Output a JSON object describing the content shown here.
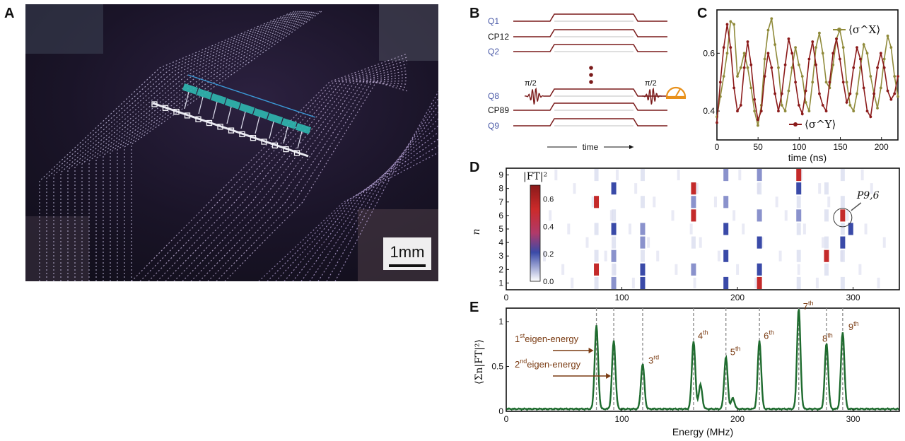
{
  "panels": {
    "a": "A",
    "b": "B",
    "c": "C",
    "d": "D",
    "e": "E"
  },
  "photo": {
    "scale_label": "1mm"
  },
  "pulse": {
    "rows": [
      "Q1",
      "CP12",
      "Q2",
      "Q8",
      "CP89",
      "Q9"
    ],
    "pi_left": "π/2",
    "pi_right": "π/2",
    "time_label": "time"
  },
  "colors": {
    "olive": "#8f8a3a",
    "maroon": "#8b1a1a",
    "green": "#1e6b2e",
    "brown": "#7a3b12",
    "blue": "#4a5aa8"
  },
  "chart_data": [
    {
      "type": "line",
      "xlabel": "time (ns)",
      "xlim": [
        0,
        220
      ],
      "ylim": [
        0.3,
        0.75
      ],
      "xticks": [
        0,
        50,
        100,
        150,
        200
      ],
      "yticks": [
        0.4,
        0.6
      ],
      "series": [
        {
          "name": "⟨σ^X⟩",
          "values": [
            0.38,
            0.45,
            0.52,
            0.6,
            0.71,
            0.7,
            0.52,
            0.55,
            0.6,
            0.55,
            0.48,
            0.4,
            0.35,
            0.42,
            0.58,
            0.68,
            0.72,
            0.63,
            0.55,
            0.42,
            0.4,
            0.47,
            0.55,
            0.62,
            0.56,
            0.52,
            0.43,
            0.4,
            0.5,
            0.62,
            0.67,
            0.6,
            0.5,
            0.48,
            0.56,
            0.65,
            0.68,
            0.62,
            0.5,
            0.42,
            0.4,
            0.46,
            0.55,
            0.63,
            0.6,
            0.52,
            0.46,
            0.41,
            0.48,
            0.58,
            0.66,
            0.62,
            0.52,
            0.45
          ]
        },
        {
          "name": "⟨σ^Y⟩",
          "values": [
            0.36,
            0.5,
            0.62,
            0.7,
            0.62,
            0.48,
            0.4,
            0.42,
            0.55,
            0.64,
            0.56,
            0.44,
            0.37,
            0.4,
            0.52,
            0.6,
            0.55,
            0.46,
            0.4,
            0.46,
            0.56,
            0.65,
            0.6,
            0.5,
            0.42,
            0.39,
            0.47,
            0.58,
            0.64,
            0.56,
            0.46,
            0.42,
            0.4,
            0.5,
            0.6,
            0.65,
            0.58,
            0.5,
            0.43,
            0.46,
            0.55,
            0.62,
            0.58,
            0.48,
            0.4,
            0.38,
            0.46,
            0.55,
            0.6,
            0.55,
            0.47,
            0.44,
            0.46,
            0.52
          ]
        }
      ]
    },
    {
      "type": "heatmap",
      "ylabel": "n",
      "colorbar_label": "|FT|²",
      "colorbar_ticks": [
        0.0,
        0.2,
        0.4,
        0.6
      ],
      "xlim": [
        0,
        340
      ],
      "xticks": [
        0,
        100,
        200,
        300
      ],
      "yticks": [
        1,
        2,
        3,
        4,
        5,
        6,
        7,
        8,
        9
      ],
      "annotation": "P9,6",
      "peaks": [
        78,
        93,
        118,
        162,
        190,
        219,
        253,
        277,
        291
      ],
      "cells": [
        [
          1,
          118,
          0.25
        ],
        [
          1,
          190,
          0.22
        ],
        [
          1,
          219,
          0.62
        ],
        [
          1,
          93,
          0.15
        ],
        [
          2,
          78,
          0.58
        ],
        [
          2,
          118,
          0.22
        ],
        [
          2,
          219,
          0.25
        ],
        [
          2,
          162,
          0.12
        ],
        [
          3,
          277,
          0.6
        ],
        [
          3,
          190,
          0.22
        ],
        [
          3,
          93,
          0.15
        ],
        [
          4,
          219,
          0.24
        ],
        [
          4,
          118,
          0.12
        ],
        [
          4,
          291,
          0.22
        ],
        [
          5,
          93,
          0.24
        ],
        [
          5,
          190,
          0.22
        ],
        [
          5,
          298,
          0.22
        ],
        [
          5,
          118,
          0.12
        ],
        [
          6,
          162,
          0.58
        ],
        [
          6,
          291,
          0.48
        ],
        [
          6,
          219,
          0.14
        ],
        [
          6,
          253,
          0.2
        ],
        [
          7,
          78,
          0.6
        ],
        [
          7,
          162,
          0.14
        ],
        [
          7,
          190,
          0.12
        ],
        [
          8,
          93,
          0.26
        ],
        [
          8,
          162,
          0.62
        ],
        [
          8,
          253,
          0.24
        ],
        [
          9,
          253,
          0.62
        ],
        [
          9,
          190,
          0.14
        ],
        [
          9,
          219,
          0.12
        ]
      ]
    },
    {
      "type": "line",
      "xlabel": "Energy (MHz)",
      "ylabel": "⟨Σn|FT|²⟩",
      "xlim": [
        0,
        340
      ],
      "ylim": [
        0,
        1.15
      ],
      "xticks": [
        0,
        100,
        200,
        300
      ],
      "yticks": [
        0,
        0.5,
        1
      ],
      "peaks": [
        {
          "x": 78,
          "y": 0.93,
          "label": "1st"
        },
        {
          "x": 93,
          "y": 0.76,
          "label": "2nd"
        },
        {
          "x": 118,
          "y": 0.5,
          "label": "3rd"
        },
        {
          "x": 162,
          "y": 0.76,
          "label": "4th"
        },
        {
          "x": 190,
          "y": 0.58,
          "label": "5th"
        },
        {
          "x": 219,
          "y": 0.76,
          "label": "6th"
        },
        {
          "x": 253,
          "y": 1.12,
          "label": "7th"
        },
        {
          "x": 277,
          "y": 0.73,
          "label": "8th"
        },
        {
          "x": 291,
          "y": 0.86,
          "label": "9th"
        }
      ],
      "small_peaks": [
        {
          "x": 168,
          "y": 0.27
        },
        {
          "x": 196,
          "y": 0.12
        }
      ],
      "annotations": {
        "first": "eigen-energy",
        "second": "eigen-energy"
      }
    }
  ]
}
